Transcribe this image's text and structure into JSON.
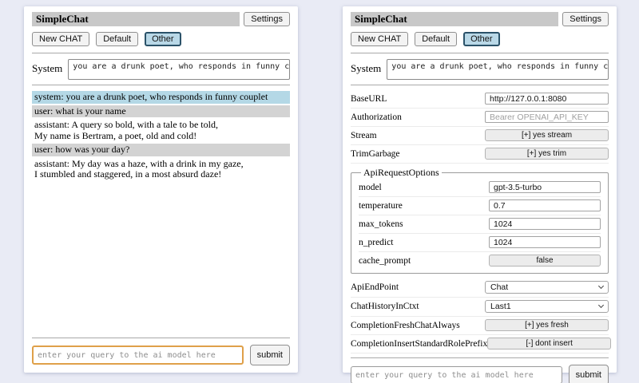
{
  "app": {
    "title": "SimpleChat",
    "settings_label": "Settings",
    "sessions": [
      "New CHAT",
      "Default",
      "Other"
    ],
    "active_session": "Other"
  },
  "system_prompt": {
    "label": "System",
    "value": "you are a drunk poet, who responds in funny couplet"
  },
  "chat": {
    "messages": [
      {
        "role": "system",
        "text": "system: you are a drunk poet, who responds in funny couplet"
      },
      {
        "role": "user",
        "text": "user: what is your name"
      },
      {
        "role": "assistant",
        "text": "assistant: A query so bold, with a tale to be told,\nMy name is Bertram, a poet, old and cold!"
      },
      {
        "role": "user",
        "text": "user: how was your day?"
      },
      {
        "role": "assistant",
        "text": "assistant: My day was a haze, with a drink in my gaze,\nI stumbled and staggered, in a most absurd daze!"
      }
    ]
  },
  "query": {
    "placeholder": "enter your query to the ai model here",
    "submit_label": "submit"
  },
  "settings": {
    "base_url": {
      "label": "BaseURL",
      "value": "http://127.0.0.1:8080"
    },
    "authorization": {
      "label": "Authorization",
      "placeholder": "Bearer OPENAI_API_KEY"
    },
    "stream": {
      "label": "Stream",
      "button": "[+] yes stream"
    },
    "trim_garbage": {
      "label": "TrimGarbage",
      "button": "[+] yes trim"
    },
    "api_request_options": {
      "legend": "ApiRequestOptions",
      "model": {
        "label": "model",
        "value": "gpt-3.5-turbo"
      },
      "temperature": {
        "label": "temperature",
        "value": "0.7"
      },
      "max_tokens": {
        "label": "max_tokens",
        "value": "1024"
      },
      "n_predict": {
        "label": "n_predict",
        "value": "1024"
      },
      "cache_prompt": {
        "label": "cache_prompt",
        "button": "false"
      }
    },
    "api_endpoint": {
      "label": "ApiEndPoint",
      "value": "Chat"
    },
    "chat_history_in_ctxt": {
      "label": "ChatHistoryInCtxt",
      "value": "Last1"
    },
    "completion_fresh_chat_always": {
      "label": "CompletionFreshChatAlways",
      "button": "[+] yes fresh"
    },
    "completion_insert_standard_role_prefix": {
      "label": "CompletionInsertStandardRolePrefix",
      "button": "[-] dont insert"
    }
  },
  "colors": {
    "title_bar_bg": "#c8c8c8",
    "system_msg_bg": "#b4d8e6",
    "user_msg_bg": "#d3d3d3",
    "active_button_bg": "#b9d8e7",
    "active_button_border": "#2b5269",
    "query_focus_border": "#dfa049",
    "page_bg": "#e9ebf5"
  }
}
